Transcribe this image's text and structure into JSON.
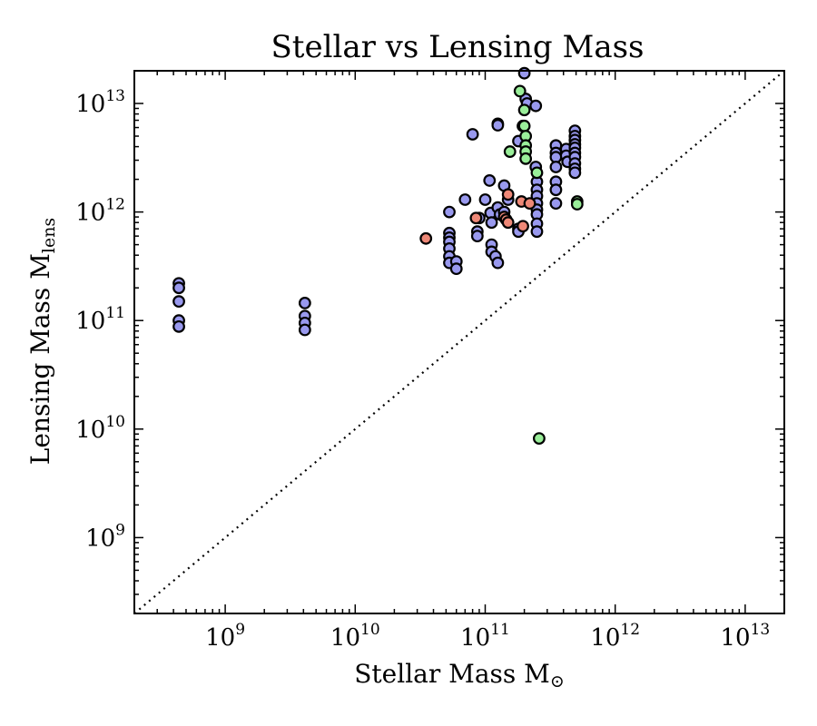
{
  "chart_data": {
    "type": "scatter",
    "title": "Stellar vs Lensing Mass",
    "xlabel": {
      "main": "Stellar Mass M",
      "symbol": "⊙"
    },
    "ylabel": {
      "main": "Lensing Mass M",
      "subscript": "lens"
    },
    "xscale": "log",
    "yscale": "log",
    "xlim": [
      200000000,
      20000000000000
    ],
    "ylim": [
      200000000,
      20000000000000
    ],
    "x_ticks": [
      {
        "base": "10",
        "exp": "9",
        "value": 1000000000
      },
      {
        "base": "10",
        "exp": "10",
        "value": 10000000000
      },
      {
        "base": "10",
        "exp": "11",
        "value": 100000000000
      },
      {
        "base": "10",
        "exp": "12",
        "value": 1000000000000
      },
      {
        "base": "10",
        "exp": "13",
        "value": 10000000000000
      }
    ],
    "y_ticks": [
      {
        "base": "10",
        "exp": "9",
        "value": 1000000000
      },
      {
        "base": "10",
        "exp": "10",
        "value": 10000000000
      },
      {
        "base": "10",
        "exp": "11",
        "value": 100000000000
      },
      {
        "base": "10",
        "exp": "12",
        "value": 1000000000000
      },
      {
        "base": "10",
        "exp": "13",
        "value": 10000000000000
      }
    ],
    "reference_line": {
      "style": "dotted",
      "relation": "y = x",
      "color": "#000000"
    },
    "grid": false,
    "legend": "none",
    "series": [
      {
        "color": "#9999ee",
        "points": [
          [
            440000000.0,
            220000000000.0
          ],
          [
            440000000.0,
            200000000000.0
          ],
          [
            440000000.0,
            150000000000.0
          ],
          [
            440000000.0,
            100000000000.0
          ],
          [
            440000000.0,
            88000000000.0
          ],
          [
            4100000000.0,
            145000000000.0
          ],
          [
            4100000000.0,
            110000000000.0
          ],
          [
            4100000000.0,
            95000000000.0
          ],
          [
            4100000000.0,
            82000000000.0
          ],
          [
            53000000000.0,
            1000000000000.0
          ],
          [
            53000000000.0,
            640000000000.0
          ],
          [
            53000000000.0,
            580000000000.0
          ],
          [
            53000000000.0,
            530000000000.0
          ],
          [
            53000000000.0,
            460000000000.0
          ],
          [
            53000000000.0,
            390000000000.0
          ],
          [
            53000000000.0,
            340000000000.0
          ],
          [
            60000000000.0,
            350000000000.0
          ],
          [
            60000000000.0,
            300000000000.0
          ],
          [
            70000000000.0,
            1300000000000.0
          ],
          [
            80000000000.0,
            5200000000000.0
          ],
          [
            87000000000.0,
            660000000000.0
          ],
          [
            87000000000.0,
            600000000000.0
          ],
          [
            90000000000.0,
            880000000000.0
          ],
          [
            100000000000.0,
            1300000000000.0
          ],
          [
            108000000000.0,
            1950000000000.0
          ],
          [
            110000000000.0,
            980000000000.0
          ],
          [
            112000000000.0,
            800000000000.0
          ],
          [
            112000000000.0,
            500000000000.0
          ],
          [
            112000000000.0,
            430000000000.0
          ],
          [
            120000000000.0,
            390000000000.0
          ],
          [
            125000000000.0,
            340000000000.0
          ],
          [
            125000000000.0,
            6500000000000.0
          ],
          [
            125000000000.0,
            6300000000000.0
          ],
          [
            125000000000.0,
            1100000000000.0
          ],
          [
            130000000000.0,
            950000000000.0
          ],
          [
            140000000000.0,
            1750000000000.0
          ],
          [
            140000000000.0,
            1000000000000.0
          ],
          [
            150000000000.0,
            1300000000000.0
          ],
          [
            180000000000.0,
            4500000000000.0
          ],
          [
            180000000000.0,
            700000000000.0
          ],
          [
            180000000000.0,
            660000000000.0
          ],
          [
            200000000000.0,
            19000000000000.0
          ],
          [
            205000000000.0,
            11000000000000.0
          ],
          [
            210000000000.0,
            10000000000000.0
          ],
          [
            245000000000.0,
            9500000000000.0
          ],
          [
            245000000000.0,
            2600000000000.0
          ],
          [
            250000000000.0,
            1900000000000.0
          ],
          [
            250000000000.0,
            1600000000000.0
          ],
          [
            250000000000.0,
            1400000000000.0
          ],
          [
            250000000000.0,
            1200000000000.0
          ],
          [
            250000000000.0,
            1050000000000.0
          ],
          [
            250000000000.0,
            950000000000.0
          ],
          [
            250000000000.0,
            780000000000.0
          ],
          [
            250000000000.0,
            660000000000.0
          ],
          [
            350000000000.0,
            4100000000000.0
          ],
          [
            350000000000.0,
            3500000000000.0
          ],
          [
            350000000000.0,
            3200000000000.0
          ],
          [
            350000000000.0,
            2600000000000.0
          ],
          [
            350000000000.0,
            1900000000000.0
          ],
          [
            350000000000.0,
            1600000000000.0
          ],
          [
            350000000000.0,
            1200000000000.0
          ],
          [
            420000000000.0,
            3800000000000.0
          ],
          [
            420000000000.0,
            3300000000000.0
          ],
          [
            430000000000.0,
            2900000000000.0
          ],
          [
            490000000000.0,
            5600000000000.0
          ],
          [
            490000000000.0,
            5000000000000.0
          ],
          [
            490000000000.0,
            4600000000000.0
          ],
          [
            490000000000.0,
            4200000000000.0
          ],
          [
            490000000000.0,
            3900000000000.0
          ],
          [
            490000000000.0,
            3500000000000.0
          ],
          [
            490000000000.0,
            3200000000000.0
          ],
          [
            490000000000.0,
            2800000000000.0
          ],
          [
            490000000000.0,
            2500000000000.0
          ],
          [
            490000000000.0,
            2300000000000.0
          ]
        ]
      },
      {
        "color": "#ee8877",
        "points": [
          [
            35000000000.0,
            570000000000.0
          ],
          [
            85000000000.0,
            880000000000.0
          ],
          [
            140000000000.0,
            900000000000.0
          ],
          [
            145000000000.0,
            850000000000.0
          ],
          [
            150000000000.0,
            800000000000.0
          ],
          [
            150000000000.0,
            1450000000000.0
          ],
          [
            190000000000.0,
            1250000000000.0
          ],
          [
            195000000000.0,
            740000000000.0
          ],
          [
            220000000000.0,
            1200000000000.0
          ]
        ]
      },
      {
        "color": "#99ee99",
        "points": [
          [
            155000000000.0,
            3600000000000.0
          ],
          [
            185000000000.0,
            13000000000000.0
          ],
          [
            195000000000.0,
            6200000000000.0
          ],
          [
            200000000000.0,
            8700000000000.0
          ],
          [
            200000000000.0,
            6200000000000.0
          ],
          [
            205000000000.0,
            5000000000000.0
          ],
          [
            205000000000.0,
            4100000000000.0
          ],
          [
            205000000000.0,
            3600000000000.0
          ],
          [
            205000000000.0,
            3100000000000.0
          ],
          [
            250000000000.0,
            2300000000000.0
          ],
          [
            510000000000.0,
            1250000000000.0
          ],
          [
            510000000000.0,
            1180000000000.0
          ],
          [
            260000000000.0,
            8200000000.0
          ]
        ]
      }
    ]
  }
}
